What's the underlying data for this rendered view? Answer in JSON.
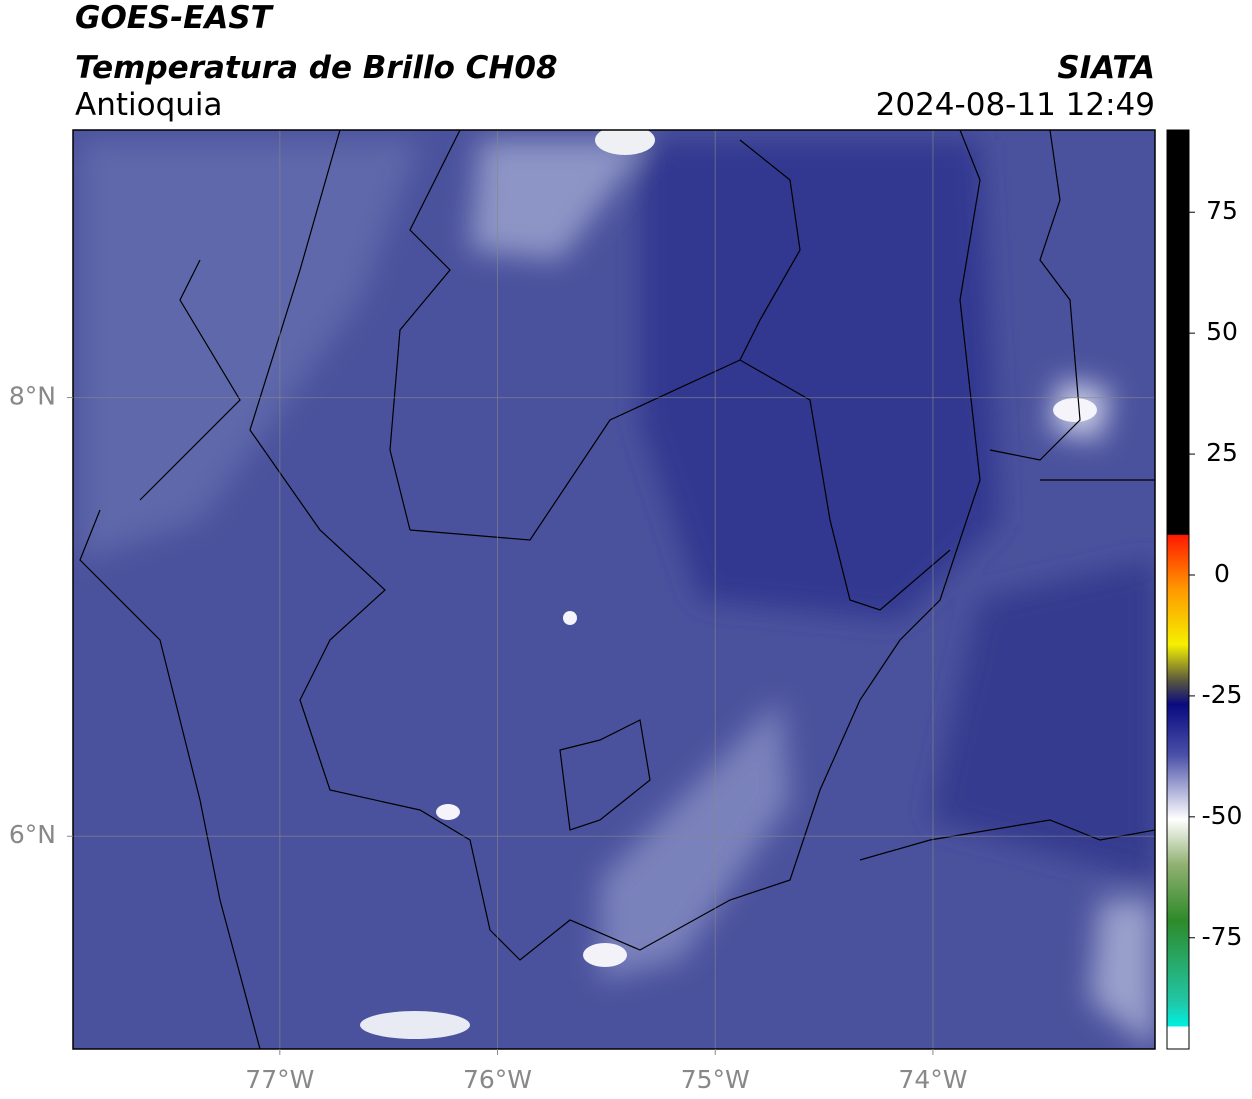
{
  "header": {
    "title": "GOES-EAST",
    "subtitle": "Temperatura de Brillo CH08",
    "source": "SIATA",
    "region": "Antioquia",
    "datetime": "2024-08-11 12:49"
  },
  "map": {
    "xlim": [
      -77.95,
      -72.98
    ],
    "ylim": [
      5.03,
      9.22
    ],
    "xticks": [
      {
        "value": -77,
        "label": "77°W"
      },
      {
        "value": -76,
        "label": "76°W"
      },
      {
        "value": -75,
        "label": "75°W"
      },
      {
        "value": -74,
        "label": "74°W"
      }
    ],
    "yticks": [
      {
        "value": 8,
        "label": "8°N"
      },
      {
        "value": 6,
        "label": "6°N"
      }
    ],
    "grid": true
  },
  "colorbar": {
    "lim": [
      -98,
      92
    ],
    "ticks": [
      75,
      50,
      25,
      0,
      -25,
      -50,
      -75
    ]
  }
}
